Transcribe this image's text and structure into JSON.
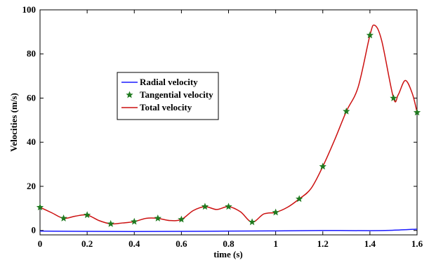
{
  "chart_data": {
    "type": "line",
    "xlabel": "time (s)",
    "ylabel": "Velocities (m/s)",
    "xlim": [
      0,
      1.6
    ],
    "ylim": [
      -2,
      100
    ],
    "x_ticks": [
      0,
      0.2,
      0.4,
      0.6,
      0.8,
      1,
      1.2,
      1.4,
      1.6
    ],
    "x_tick_labels": [
      "0",
      "0.2",
      "0.4",
      "0.6",
      "0.8",
      "1",
      "1.2",
      "1.4",
      "1.6"
    ],
    "y_ticks": [
      0,
      20,
      40,
      60,
      80,
      100
    ],
    "y_tick_labels": [
      "0",
      "20",
      "40",
      "60",
      "80",
      "100"
    ],
    "grid": false,
    "legend_position": "upper-left (inside plot)",
    "series": [
      {
        "name": "Radial velocity",
        "style": "line",
        "color": "#1a1aff",
        "x": [
          0,
          0.2,
          0.4,
          0.6,
          0.8,
          1.0,
          1.2,
          1.4,
          1.5,
          1.6
        ],
        "y": [
          -0.3,
          -0.4,
          -0.5,
          -0.4,
          -0.3,
          -0.2,
          0.0,
          -0.1,
          0.1,
          0.6
        ]
      },
      {
        "name": "Tangential velocity",
        "style": "markers",
        "marker": "star",
        "color": "#1f7a1f",
        "x": [
          0,
          0.1,
          0.2,
          0.3,
          0.4,
          0.5,
          0.6,
          0.7,
          0.8,
          0.9,
          1.0,
          1.1,
          1.2,
          1.3,
          1.4,
          1.5,
          1.6
        ],
        "y": [
          10.5,
          5.5,
          7.0,
          3.0,
          4.0,
          5.5,
          5.0,
          10.8,
          10.8,
          3.8,
          8.2,
          14.3,
          29.0,
          54.0,
          88.5,
          60.0,
          53.5
        ]
      },
      {
        "name": "Total velocity",
        "style": "line",
        "color": "#cc1111",
        "x": [
          0,
          0.05,
          0.1,
          0.15,
          0.2,
          0.25,
          0.3,
          0.35,
          0.4,
          0.45,
          0.5,
          0.55,
          0.6,
          0.65,
          0.7,
          0.75,
          0.8,
          0.85,
          0.9,
          0.95,
          1.0,
          1.05,
          1.1,
          1.15,
          1.2,
          1.25,
          1.3,
          1.35,
          1.4,
          1.42,
          1.45,
          1.5,
          1.52,
          1.55,
          1.58,
          1.6
        ],
        "y": [
          10.5,
          8.0,
          5.5,
          6.5,
          7.0,
          4.5,
          3.0,
          3.4,
          4.0,
          5.5,
          5.5,
          4.5,
          5.0,
          9.0,
          10.8,
          9.5,
          10.8,
          8.5,
          3.8,
          7.5,
          8.2,
          10.5,
          14.3,
          19.0,
          29.0,
          41.0,
          54.0,
          65.0,
          88.5,
          93.0,
          86.0,
          60.0,
          61.5,
          68.0,
          62.0,
          53.5
        ]
      }
    ]
  }
}
